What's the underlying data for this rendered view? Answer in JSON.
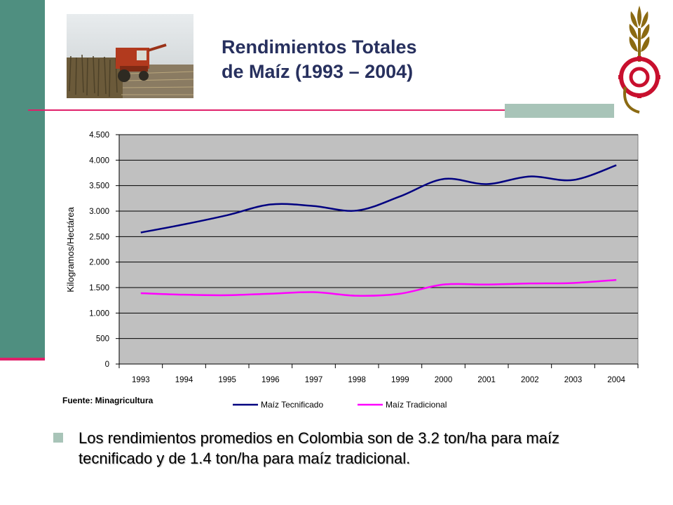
{
  "slide": {
    "title_line1": "Rendimientos Totales",
    "title_line2": "de Maíz (1993 – 2004)",
    "source": "Fuente: Minagricultura",
    "bullet": "Los rendimientos promedios en Colombia son de 3.2 ton/ha para maíz tecnificado y de 1.4 ton/ha para maíz tradicional.",
    "colors": {
      "accent_green": "#4f8f80",
      "accent_pink": "#e0206a",
      "title": "#27305e"
    }
  },
  "chart_data": {
    "type": "line",
    "title": "",
    "xlabel": "",
    "ylabel": "Kilogramos/Hectárea",
    "categories": [
      "1993",
      "1994",
      "1995",
      "1996",
      "1997",
      "1998",
      "1999",
      "2000",
      "2001",
      "2002",
      "2003",
      "2004"
    ],
    "ylim": [
      0,
      4500
    ],
    "yticks": [
      0,
      500,
      1000,
      1500,
      2000,
      2500,
      3000,
      3500,
      4000,
      4500
    ],
    "ytick_labels": [
      "0",
      "500",
      "1.000",
      "1.500",
      "2.000",
      "2.500",
      "3.000",
      "3.500",
      "4.000",
      "4.500"
    ],
    "grid": true,
    "legend_position": "bottom",
    "series": [
      {
        "name": "Maíz Tecnificado",
        "color": "#000080",
        "values": [
          2580,
          2740,
          2920,
          3130,
          3100,
          3010,
          3290,
          3630,
          3530,
          3680,
          3610,
          3900
        ]
      },
      {
        "name": "Maíz Tradicional",
        "color": "#ff00ff",
        "values": [
          1390,
          1360,
          1350,
          1380,
          1410,
          1340,
          1380,
          1560,
          1560,
          1580,
          1590,
          1650
        ]
      }
    ]
  }
}
